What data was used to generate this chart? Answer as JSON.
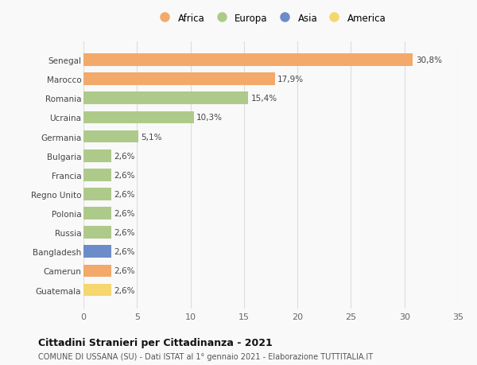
{
  "countries": [
    "Senegal",
    "Marocco",
    "Romania",
    "Ucraina",
    "Germania",
    "Bulgaria",
    "Francia",
    "Regno Unito",
    "Polonia",
    "Russia",
    "Bangladesh",
    "Camerun",
    "Guatemala"
  ],
  "values": [
    30.8,
    17.9,
    15.4,
    10.3,
    5.1,
    2.6,
    2.6,
    2.6,
    2.6,
    2.6,
    2.6,
    2.6,
    2.6
  ],
  "labels": [
    "30,8%",
    "17,9%",
    "15,4%",
    "10,3%",
    "5,1%",
    "2,6%",
    "2,6%",
    "2,6%",
    "2,6%",
    "2,6%",
    "2,6%",
    "2,6%",
    "2,6%"
  ],
  "continents": [
    "Africa",
    "Africa",
    "Europa",
    "Europa",
    "Europa",
    "Europa",
    "Europa",
    "Europa",
    "Europa",
    "Europa",
    "Asia",
    "Africa",
    "America"
  ],
  "colors": {
    "Africa": "#F2A96A",
    "Europa": "#AECA8A",
    "Asia": "#6B8CC8",
    "America": "#F5D76E"
  },
  "xlim": [
    0,
    35
  ],
  "xticks": [
    0,
    5,
    10,
    15,
    20,
    25,
    30,
    35
  ],
  "title": "Cittadini Stranieri per Cittadinanza - 2021",
  "subtitle": "COMUNE DI USSANA (SU) - Dati ISTAT al 1° gennaio 2021 - Elaborazione TUTTITALIA.IT",
  "background_color": "#f9f9f9",
  "grid_color": "#dddddd",
  "bar_height": 0.65
}
